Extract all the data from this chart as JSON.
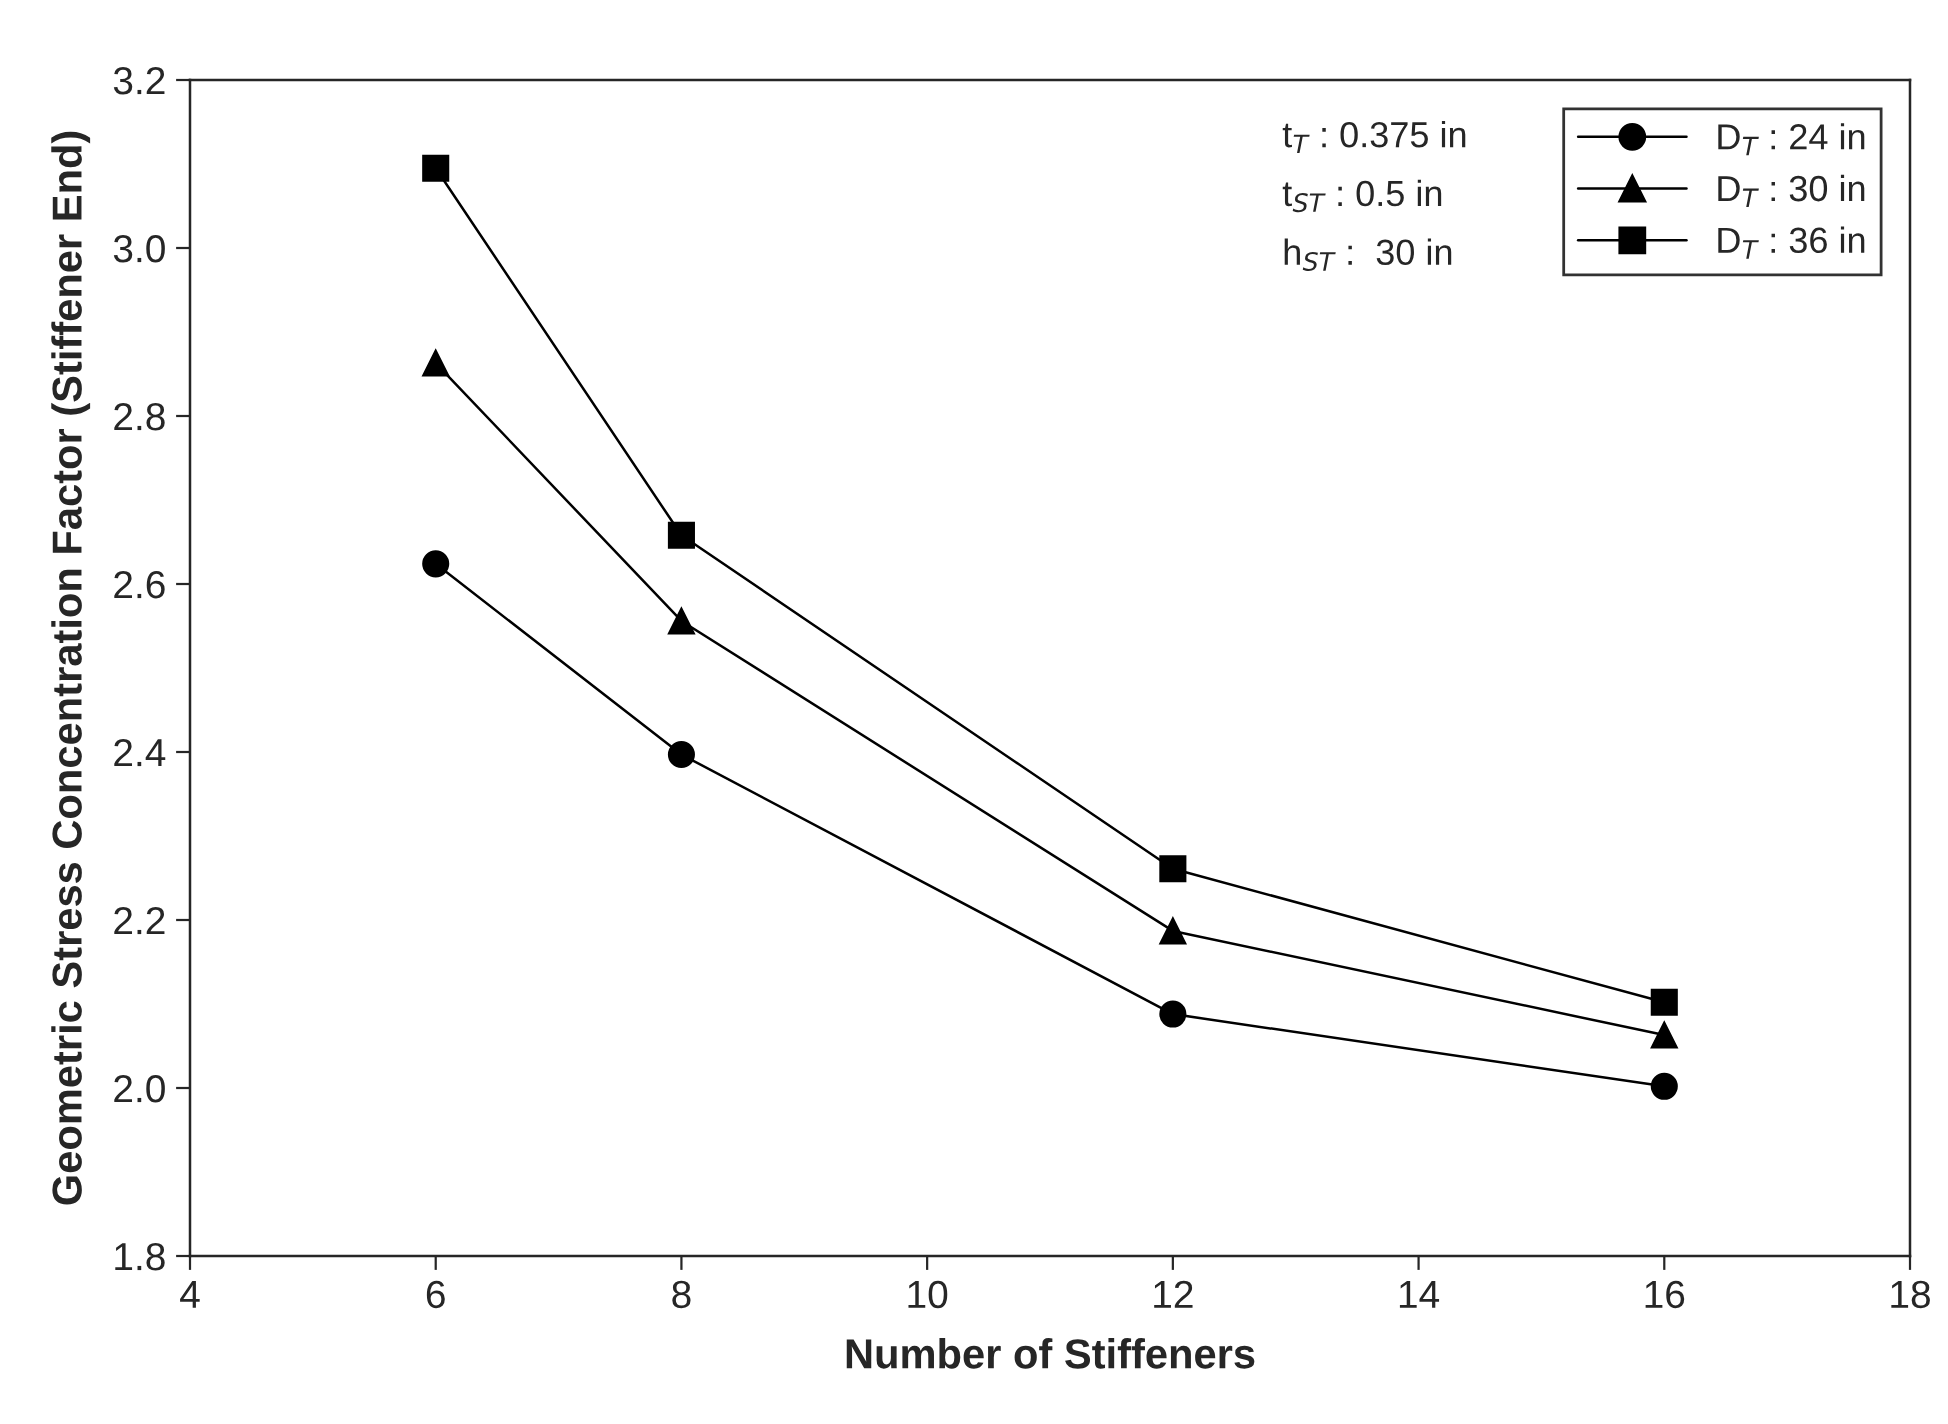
{
  "chart_data": {
    "type": "line",
    "xlabel": "Number of Stiffeners",
    "ylabel": "Geometric Stress Concentration Factor (Stiffener End)",
    "x": [
      6,
      8,
      12,
      16
    ],
    "series": [
      {
        "name": "D$_{T}$ : 24 in",
        "color": "#000000",
        "marker": "circle",
        "values": [
          2.624,
          2.397,
          2.088,
          2.002
        ]
      },
      {
        "name": "D$_{T}$ : 30 in",
        "color": "#000000",
        "marker": "triangle",
        "values": [
          2.863,
          2.556,
          2.187,
          2.063
        ]
      },
      {
        "name": "D$_{T}$ : 36 in",
        "color": "#000000",
        "marker": "square",
        "values": [
          3.095,
          2.658,
          2.261,
          2.102
        ]
      }
    ],
    "annotations": [
      "t$_{T}$ : 0.375 in",
      "t$_{ST}$ : 0.5 in",
      "h$_{ST}$ :  30 in"
    ],
    "xlim": [
      4,
      18
    ],
    "xticks": [
      4,
      6,
      8,
      10,
      12,
      14,
      16,
      18
    ],
    "ylim": [
      1.8,
      3.2
    ],
    "yticks": [
      1.8,
      {
        "value": 2,
        "label": "2.0"
      },
      2.2,
      2.4,
      2.6,
      2.8,
      {
        "value": 3,
        "label": "3.0"
      },
      3.2
    ],
    "legend": "top right",
    "line_style": "solid",
    "grid": false
  }
}
